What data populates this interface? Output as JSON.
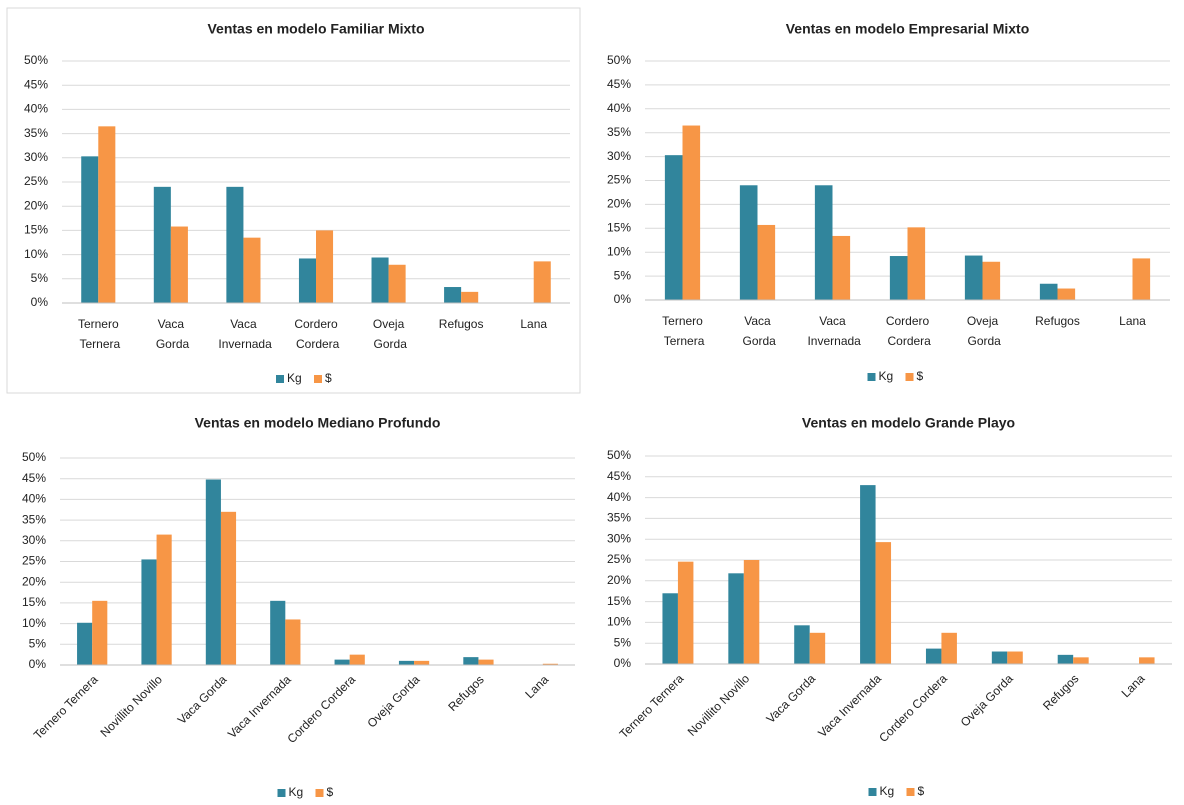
{
  "chart_data": [
    {
      "type": "bar",
      "title": "Ventas en modelo Familiar Mixto",
      "categories": [
        "Ternero Ternera",
        "Vaca Gorda",
        "Vaca Invernada",
        "Cordero Cordera",
        "Oveja Gorda",
        "Refugos",
        "Lana"
      ],
      "series": [
        {
          "name": "Kg",
          "color": "#31859c",
          "values": [
            30.3,
            24,
            24,
            9.2,
            9.4,
            3.3,
            0
          ]
        },
        {
          "name": "$",
          "color": "#f79646",
          "values": [
            36.5,
            15.8,
            13.5,
            15,
            7.9,
            2.3,
            8.6
          ]
        }
      ],
      "ylim": [
        0,
        50
      ],
      "yticks": [
        {
          "value": 0,
          "label": "0%"
        },
        {
          "value": 5,
          "label": "5%"
        },
        {
          "value": 10,
          "label": "10%"
        },
        {
          "value": 15,
          "label": "15%"
        },
        {
          "value": 20,
          "label": "20%"
        },
        {
          "value": 25,
          "label": "25%"
        },
        {
          "value": 30,
          "label": "30%"
        },
        {
          "value": 35,
          "label": "35%"
        },
        {
          "value": 40,
          "label": "40%"
        },
        {
          "value": 45,
          "label": "45%"
        },
        {
          "value": 50,
          "label": "50%"
        }
      ],
      "grid": true,
      "legend": "bottom"
    },
    {
      "type": "bar",
      "title": "Ventas en modelo Empresarial Mixto",
      "categories": [
        "Ternero Ternera",
        "Vaca Gorda",
        "Vaca Invernada",
        "Cordero Cordera",
        "Oveja Gorda",
        "Refugos",
        "Lana"
      ],
      "series": [
        {
          "name": "Kg",
          "color": "#31859c",
          "values": [
            30.3,
            24,
            24,
            9.2,
            9.3,
            3.4,
            0
          ]
        },
        {
          "name": "$",
          "color": "#f79646",
          "values": [
            36.5,
            15.7,
            13.4,
            15.2,
            8,
            2.4,
            8.7
          ]
        }
      ],
      "ylim": [
        0,
        50
      ],
      "yticks": [
        {
          "value": 0,
          "label": "0%"
        },
        {
          "value": 5,
          "label": "5%"
        },
        {
          "value": 10,
          "label": "10%"
        },
        {
          "value": 15,
          "label": "15%"
        },
        {
          "value": 20,
          "label": "20%"
        },
        {
          "value": 25,
          "label": "25%"
        },
        {
          "value": 30,
          "label": "30%"
        },
        {
          "value": 35,
          "label": "35%"
        },
        {
          "value": 40,
          "label": "40%"
        },
        {
          "value": 45,
          "label": "45%"
        },
        {
          "value": 50,
          "label": "50%"
        }
      ],
      "grid": true,
      "legend": "bottom"
    },
    {
      "type": "bar",
      "title": "Ventas en modelo Mediano Profundo",
      "categories": [
        "Ternero Ternera",
        "Novillito Novillo",
        "Vaca Gorda",
        "Vaca Invernada",
        "Cordero Cordera",
        "Oveja Gorda",
        "Refugos",
        "Lana"
      ],
      "series": [
        {
          "name": "Kg",
          "color": "#31859c",
          "values": [
            10.2,
            25.5,
            44.8,
            15.5,
            1.3,
            1,
            1.9,
            0
          ]
        },
        {
          "name": "$",
          "color": "#f79646",
          "values": [
            15.5,
            31.5,
            37,
            11,
            2.5,
            1,
            1.3,
            0.3
          ]
        }
      ],
      "ylim": [
        0,
        50
      ],
      "yticks": [
        {
          "value": 0,
          "label": "0%"
        },
        {
          "value": 5,
          "label": "5%"
        },
        {
          "value": 10,
          "label": "10%"
        },
        {
          "value": 15,
          "label": "15%"
        },
        {
          "value": 20,
          "label": "20%"
        },
        {
          "value": 25,
          "label": "25%"
        },
        {
          "value": 30,
          "label": "30%"
        },
        {
          "value": 35,
          "label": "35%"
        },
        {
          "value": 40,
          "label": "40%"
        },
        {
          "value": 45,
          "label": "45%"
        },
        {
          "value": 50,
          "label": "50%"
        }
      ],
      "grid": true,
      "legend": "bottom"
    },
    {
      "type": "bar",
      "title": "Ventas en modelo Grande Playo",
      "categories": [
        "Ternero Ternera",
        "Novillito Novillo",
        "Vaca Gorda",
        "Vaca Invernada",
        "Cordero Cordera",
        "Oveja Gorda",
        "Refugos",
        "Lana"
      ],
      "series": [
        {
          "name": "Kg",
          "color": "#31859c",
          "values": [
            17,
            21.8,
            9.3,
            43,
            3.7,
            3,
            2.2,
            0
          ]
        },
        {
          "name": "$",
          "color": "#f79646",
          "values": [
            24.6,
            25,
            7.5,
            29.3,
            7.5,
            3,
            1.6,
            1.6
          ]
        }
      ],
      "ylim": [
        0,
        50
      ],
      "yticks": [
        {
          "value": 0,
          "label": "0%"
        },
        {
          "value": 5,
          "label": "5%"
        },
        {
          "value": 10,
          "label": "10%"
        },
        {
          "value": 15,
          "label": "15%"
        },
        {
          "value": 20,
          "label": "20%"
        },
        {
          "value": 25,
          "label": "25%"
        },
        {
          "value": 30,
          "label": "30%"
        },
        {
          "value": 35,
          "label": "35%"
        },
        {
          "value": 40,
          "label": "40%"
        },
        {
          "value": 45,
          "label": "45%"
        },
        {
          "value": 50,
          "label": "50%"
        }
      ],
      "grid": true,
      "legend": "bottom"
    }
  ]
}
